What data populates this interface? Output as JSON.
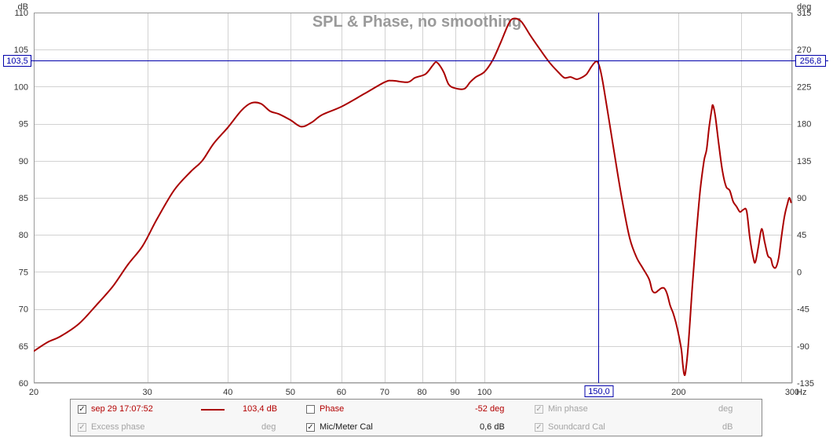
{
  "chart_data": {
    "type": "line",
    "title": "SPL & Phase, no smoothing",
    "y_left_unit": "dB",
    "y_right_unit": "deg",
    "x_unit": "Hz",
    "x_scale": "log",
    "xlim": [
      20,
      300
    ],
    "ylim_left": [
      60,
      110
    ],
    "ylim_right": [
      -135,
      315
    ],
    "x_ticks": [
      {
        "value": 20,
        "label": "20"
      },
      {
        "value": 30,
        "label": "30"
      },
      {
        "value": 40,
        "label": "40"
      },
      {
        "value": 50,
        "label": "50"
      },
      {
        "value": 60,
        "label": "60"
      },
      {
        "value": 70,
        "label": "70"
      },
      {
        "value": 80,
        "label": "80"
      },
      {
        "value": 90,
        "label": "90"
      },
      {
        "value": 100,
        "label": "100"
      },
      {
        "value": 200,
        "label": "200"
      },
      {
        "value": 300,
        "label": "300"
      }
    ],
    "x_minor_ticks": [
      150,
      250
    ],
    "y_left_ticks": [
      60,
      65,
      70,
      75,
      80,
      85,
      90,
      95,
      100,
      105,
      110
    ],
    "y_right_ticks": [
      -135,
      -90,
      -45,
      0,
      45,
      90,
      135,
      180,
      225,
      270,
      315
    ],
    "cursor": {
      "x": 150,
      "y": 103.5,
      "x_label": "150,0",
      "y_left_label": "103,5",
      "y_right_label": "256,8"
    },
    "series": [
      {
        "color": "#aa0000",
        "points": [
          [
            20,
            64.3
          ],
          [
            21,
            65.5
          ],
          [
            22,
            66.3
          ],
          [
            23.5,
            68
          ],
          [
            25,
            70.5
          ],
          [
            26.5,
            73
          ],
          [
            28,
            76
          ],
          [
            29.5,
            78.5
          ],
          [
            31,
            82
          ],
          [
            33,
            86
          ],
          [
            35,
            88.5
          ],
          [
            36.5,
            90
          ],
          [
            38,
            92.3
          ],
          [
            40,
            94.5
          ],
          [
            42,
            96.8
          ],
          [
            43.5,
            97.8
          ],
          [
            45,
            97.7
          ],
          [
            46.5,
            96.7
          ],
          [
            48,
            96.3
          ],
          [
            50,
            95.5
          ],
          [
            52,
            94.6
          ],
          [
            54,
            95.2
          ],
          [
            56,
            96.2
          ],
          [
            60,
            97.3
          ],
          [
            65,
            99
          ],
          [
            70,
            100.6
          ],
          [
            72,
            100.8
          ],
          [
            76,
            100.6
          ],
          [
            78,
            101.2
          ],
          [
            81,
            101.7
          ],
          [
            83,
            102.8
          ],
          [
            84,
            103.3
          ],
          [
            85,
            103
          ],
          [
            86.5,
            101.9
          ],
          [
            88,
            100.3
          ],
          [
            90,
            99.8
          ],
          [
            93,
            99.7
          ],
          [
            95,
            100.6
          ],
          [
            97,
            101.3
          ],
          [
            100,
            102
          ],
          [
            103,
            103.6
          ],
          [
            106,
            106
          ],
          [
            109,
            108.5
          ],
          [
            111,
            109.2
          ],
          [
            114,
            108.8
          ],
          [
            118,
            106.8
          ],
          [
            122,
            105
          ],
          [
            126,
            103.3
          ],
          [
            130,
            102
          ],
          [
            133,
            101.2
          ],
          [
            136,
            101.3
          ],
          [
            139,
            101
          ],
          [
            142,
            101.3
          ],
          [
            144,
            101.7
          ],
          [
            146,
            102.5
          ],
          [
            148,
            103.2
          ],
          [
            149.5,
            103.4
          ],
          [
            151,
            102.5
          ],
          [
            153,
            100
          ],
          [
            156,
            95.5
          ],
          [
            160,
            89.5
          ],
          [
            164,
            84
          ],
          [
            168,
            79.5
          ],
          [
            172,
            77
          ],
          [
            176,
            75.5
          ],
          [
            180,
            74
          ],
          [
            182,
            72.5
          ],
          [
            184,
            72.2
          ],
          [
            186,
            72.5
          ],
          [
            188,
            72.8
          ],
          [
            190,
            72.8
          ],
          [
            192,
            72
          ],
          [
            194,
            70.5
          ],
          [
            196,
            69.5
          ],
          [
            198,
            68.2
          ],
          [
            200,
            66.5
          ],
          [
            202,
            64.5
          ],
          [
            203,
            62.5
          ],
          [
            204,
            61.2
          ],
          [
            205,
            61.5
          ],
          [
            207,
            65
          ],
          [
            210,
            73
          ],
          [
            213,
            80
          ],
          [
            216,
            86
          ],
          [
            219,
            90
          ],
          [
            221,
            91.5
          ],
          [
            223,
            94.5
          ],
          [
            225,
            96.8
          ],
          [
            226,
            97.5
          ],
          [
            228,
            96
          ],
          [
            231,
            92
          ],
          [
            234,
            88.5
          ],
          [
            237,
            86.5
          ],
          [
            240,
            86
          ],
          [
            243,
            84.5
          ],
          [
            246,
            83.8
          ],
          [
            249,
            83.1
          ],
          [
            252,
            83.4
          ],
          [
            255,
            83.2
          ],
          [
            258,
            79.5
          ],
          [
            261,
            77
          ],
          [
            263,
            76.3
          ],
          [
            266,
            78.5
          ],
          [
            269,
            80.8
          ],
          [
            272,
            79
          ],
          [
            275,
            77.2
          ],
          [
            278,
            76.8
          ],
          [
            280,
            75.8
          ],
          [
            283,
            75.6
          ],
          [
            286,
            77
          ],
          [
            289,
            80
          ],
          [
            292,
            82.6
          ],
          [
            295,
            84.2
          ],
          [
            297,
            85
          ],
          [
            299,
            84.3
          ]
        ]
      }
    ]
  },
  "legend": {
    "row1": {
      "trace_name": "sep 29 17:07:52",
      "trace_value": "103,4 dB",
      "phase_label": "Phase",
      "phase_value": "-52 deg",
      "min_phase_label": "Min phase",
      "min_phase_unit": "deg"
    },
    "row2": {
      "excess_phase_label": "Excess phase",
      "excess_phase_unit": "deg",
      "mic_cal_label": "Mic/Meter Cal",
      "mic_cal_value": "0,6 dB",
      "soundcard_cal_label": "Soundcard Cal",
      "soundcard_cal_unit": "dB"
    },
    "check_mark": "✓"
  },
  "colors": {
    "trace": "#aa0000",
    "cursor": "#0000aa",
    "grid": "#d2d2d2",
    "title": "#9a9a9a"
  }
}
